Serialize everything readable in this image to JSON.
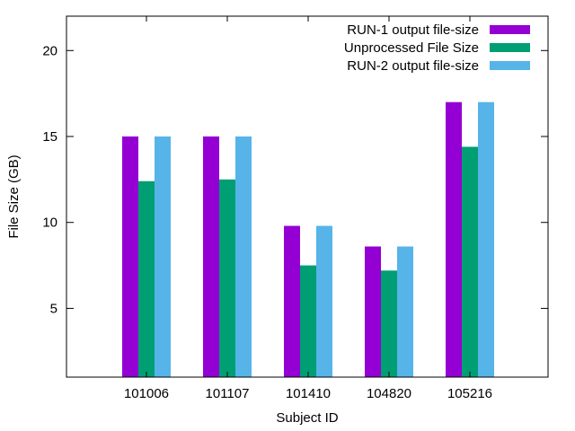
{
  "chart_data": {
    "type": "bar",
    "title": "",
    "xlabel": "Subject ID",
    "ylabel": "File Size (GB)",
    "ylim": [
      1,
      22
    ],
    "yticks": [
      5,
      10,
      15,
      20
    ],
    "categories": [
      "101006",
      "101107",
      "101410",
      "104820",
      "105216"
    ],
    "series": [
      {
        "name": "RUN-1 output file-size",
        "color": "#9400d3",
        "values": [
          15.0,
          15.0,
          9.8,
          8.6,
          17.0
        ]
      },
      {
        "name": "Unprocessed File Size",
        "color": "#009e73",
        "values": [
          12.4,
          12.5,
          7.5,
          7.2,
          14.4
        ]
      },
      {
        "name": "RUN-2 output file-size",
        "color": "#56b4e9",
        "values": [
          15.0,
          15.0,
          9.8,
          8.6,
          17.0
        ]
      }
    ],
    "grid": false,
    "legend_position": "top-right"
  }
}
